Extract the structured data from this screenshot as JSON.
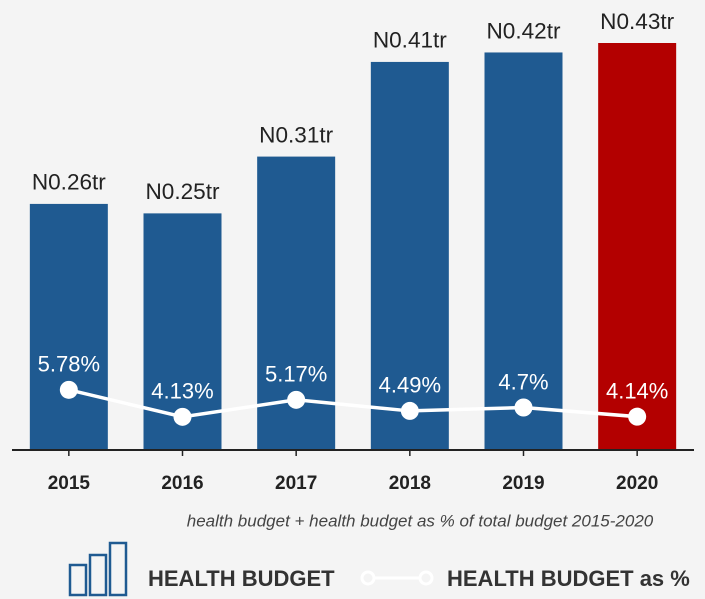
{
  "chart_data": {
    "type": "bar",
    "caption": "health budget + health budget as % of total budget 2015-2020",
    "categories": [
      "2015",
      "2016",
      "2017",
      "2018",
      "2019",
      "2020"
    ],
    "series": [
      {
        "name": "HEALTH BUDGET",
        "type": "bar",
        "color": "#1f5a91",
        "colors": [
          "#1f5a91",
          "#1f5a91",
          "#1f5a91",
          "#1f5a91",
          "#1f5a91",
          "#b30000"
        ],
        "values": [
          0.26,
          0.25,
          0.31,
          0.41,
          0.42,
          0.43
        ],
        "value_labels": [
          "N0.26tr",
          "N0.25tr",
          "N0.31tr",
          "N0.41tr",
          "N0.42tr",
          "N0.43tr"
        ]
      },
      {
        "name": "HEALTH BUDGET as %",
        "type": "line",
        "axis": "y2",
        "color": "#ffffff",
        "values": [
          5.78,
          4.13,
          5.17,
          4.49,
          4.7,
          4.14
        ],
        "value_labels": [
          "5.78%",
          "4.13%",
          "5.17%",
          "4.49%",
          "4.7%",
          "4.14%"
        ]
      }
    ],
    "ylim": [
      0,
      0.43
    ],
    "y2lim": [
      2.1,
      27
    ]
  }
}
